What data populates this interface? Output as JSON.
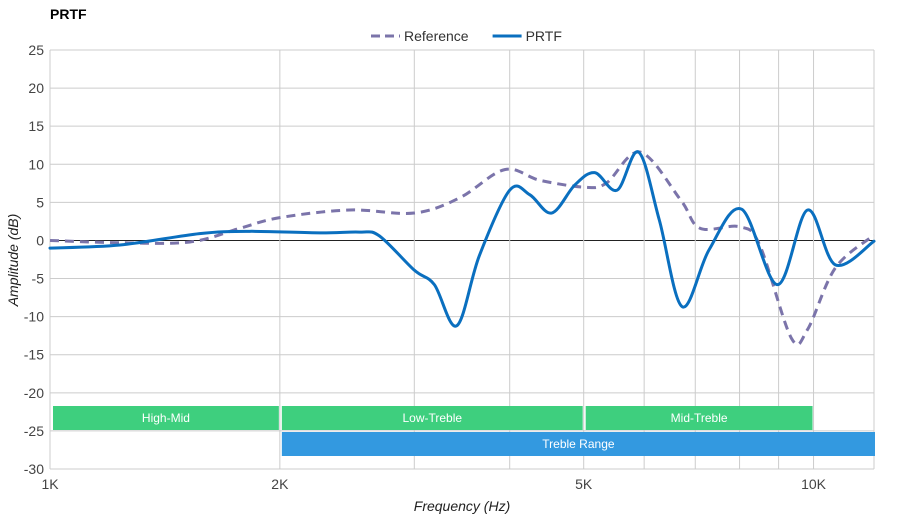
{
  "chart_data": {
    "type": "line",
    "title": "PRTF",
    "xlabel": "Frequency (Hz)",
    "ylabel": "Amplitude (dB)",
    "xscale": "log",
    "xlim": [
      1000,
      12000
    ],
    "ylim": [
      -30,
      25
    ],
    "grid": true,
    "legend_placement": "top-center",
    "x_ticks": [
      {
        "v": 1000,
        "label": "1K"
      },
      {
        "v": 2000,
        "label": "2K"
      },
      {
        "v": 5000,
        "label": "5K"
      },
      {
        "v": 10000,
        "label": "10K"
      }
    ],
    "x_minor_grid": [
      3000,
      4000,
      6000,
      7000,
      8000,
      9000,
      12000
    ],
    "y_ticks": [
      25,
      20,
      15,
      10,
      5,
      0,
      -5,
      -10,
      -15,
      -20,
      -25,
      -30
    ],
    "series": [
      {
        "name": "Reference",
        "style": "dashed",
        "color": "#7b74aa",
        "x": [
          1000,
          1235,
          1525,
          1773,
          2000,
          2470,
          3000,
          3440,
          3940,
          4380,
          5000,
          5350,
          5930,
          6700,
          7100,
          8000,
          8500,
          9350,
          9820,
          10680,
          12000
        ],
        "y": [
          0,
          -0.3,
          -0.2,
          1.6,
          3,
          4,
          3.6,
          5.6,
          9.3,
          7.9,
          7,
          7.5,
          11.6,
          5.3,
          1.6,
          1.8,
          -0.6,
          -12.8,
          -11.7,
          -3.6,
          0.7
        ]
      },
      {
        "name": "PRTF",
        "style": "solid",
        "color": "#0a6fbf",
        "x": [
          1000,
          1235,
          1570,
          1827,
          2256,
          2545,
          2700,
          3000,
          3187,
          3410,
          3650,
          4000,
          4250,
          4540,
          4870,
          5170,
          5530,
          5900,
          6280,
          6730,
          7300,
          8050,
          8970,
          9820,
          10680,
          12000
        ],
        "y": [
          -1,
          -0.6,
          0.9,
          1.2,
          1,
          1.1,
          0.6,
          -3.9,
          -5.8,
          -11.2,
          -2,
          6.6,
          6,
          3.6,
          7.3,
          8.9,
          6.6,
          11.6,
          2.7,
          -8.7,
          -1.2,
          4.1,
          -5.8,
          4,
          -3.2,
          -0.1
        ]
      }
    ],
    "bands": [
      {
        "label": "High-Mid",
        "from": 1000,
        "to": 2000,
        "row": 0,
        "color": "#3ecf7e"
      },
      {
        "label": "Low-Treble",
        "from": 2000,
        "to": 5000,
        "row": 0,
        "color": "#3ecf7e"
      },
      {
        "label": "Mid-Treble",
        "from": 5000,
        "to": 10000,
        "row": 0,
        "color": "#3ecf7e"
      },
      {
        "label": "Treble Range",
        "from": 2000,
        "to": 12000,
        "row": 1,
        "color": "#3399e0"
      }
    ]
  }
}
